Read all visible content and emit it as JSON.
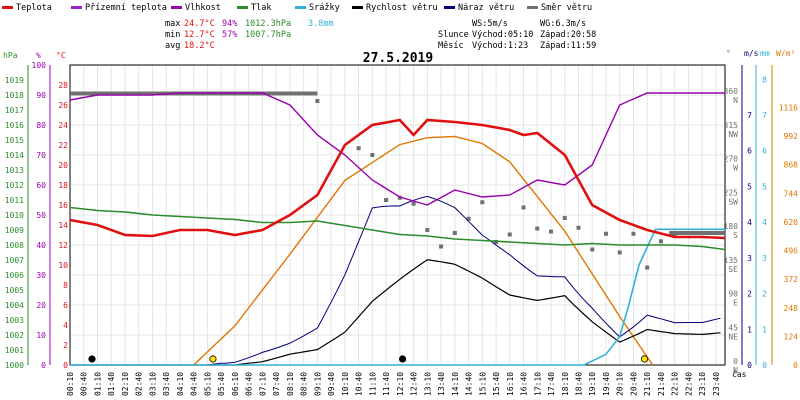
{
  "chart_data": {
    "type": "line",
    "title": "27.5.2019",
    "xlabel": "čas",
    "legend": [
      {
        "key": "temp",
        "label": "Teplota",
        "color": "#e01010"
      },
      {
        "key": "feels",
        "label": "Přízemní teplota",
        "color": "#a020c8"
      },
      {
        "key": "hum",
        "label": "Vlhkost",
        "color": "#9a00b0"
      },
      {
        "key": "press",
        "label": "Tlak",
        "color": "#2a8c2a"
      },
      {
        "key": "rain",
        "label": "Srážky",
        "color": "#30b0d8"
      },
      {
        "key": "ws",
        "label": "Rychlost větru",
        "color": "#000000"
      },
      {
        "key": "wg",
        "label": "Náraz větru",
        "color": "#00007a"
      },
      {
        "key": "wd",
        "label": "Směr větru",
        "color": "#707070"
      }
    ],
    "stats": {
      "max": {
        "label": "max",
        "temp": "24.7°C",
        "hum": "94%",
        "press": "1012.3hPa",
        "rain": "3.8mm"
      },
      "min": {
        "label": "min",
        "temp": "12.7°C",
        "hum": "57%",
        "press": "1007.7hPa"
      },
      "avg": {
        "label": "avg",
        "temp": "18.2°C"
      },
      "ws": "WS:5m/s",
      "wg": "WG:6.3m/s",
      "sun": {
        "label": "Slunce",
        "rise": "Východ:05:10",
        "set": "Západ:20:58"
      },
      "moon": {
        "label": "Měsíc",
        "rise": "Východ:1:23",
        "set": "Západ:11:59"
      }
    },
    "axes": {
      "hpa": {
        "unit": "hPa",
        "color": "#2a8c2a",
        "ticks": [
          "1000",
          "1001",
          "1002",
          "1003",
          "1004",
          "1005",
          "1006",
          "1007",
          "1008",
          "1009",
          "1010",
          "1011",
          "1012",
          "1013",
          "1014",
          "1015",
          "1016",
          "1017",
          "1018",
          "1019"
        ]
      },
      "pct": {
        "unit": "%",
        "color": "#9a00b0",
        "ticks": [
          "0",
          "10",
          "20",
          "30",
          "40",
          "50",
          "60",
          "70",
          "80",
          "90",
          "100"
        ]
      },
      "temp": {
        "unit": "°C",
        "color": "#e01010",
        "ticks": [
          "0",
          "2",
          "4",
          "6",
          "8",
          "10",
          "12",
          "14",
          "16",
          "18",
          "20",
          "22",
          "24",
          "26",
          "28"
        ]
      },
      "dir": {
        "unit": "°",
        "color": "#707070",
        "ticks": [
          {
            "v": "0",
            "d": "N"
          },
          {
            "v": "45",
            "d": "NE"
          },
          {
            "v": "90",
            "d": "E"
          },
          {
            "v": "135",
            "d": "SE"
          },
          {
            "v": "180",
            "d": "S"
          },
          {
            "v": "225",
            "d": "SW"
          },
          {
            "v": "270",
            "d": "W"
          },
          {
            "v": "315",
            "d": "NW"
          },
          {
            "v": "360",
            "d": "N"
          }
        ]
      },
      "ms": {
        "unit": "m/s",
        "color": "#00007a",
        "ticks": [
          "0",
          "1",
          "2",
          "3",
          "4",
          "5",
          "6",
          "7"
        ]
      },
      "mm": {
        "unit": "mm",
        "color": "#30b0d8",
        "ticks": [
          "0",
          "1",
          "2",
          "3",
          "4",
          "5",
          "6",
          "7",
          "8"
        ]
      },
      "wm2": {
        "unit": "W/m²",
        "color": "#e07800",
        "ticks": [
          "0",
          "124",
          "248",
          "372",
          "496",
          "620",
          "744",
          "868",
          "992",
          "1116"
        ]
      }
    },
    "x_ticks": [
      "00:10",
      "00:40",
      "01:10",
      "01:40",
      "02:10",
      "02:40",
      "03:10",
      "03:40",
      "04:10",
      "04:40",
      "05:10",
      "05:40",
      "06:10",
      "06:40",
      "07:10",
      "07:40",
      "08:10",
      "08:40",
      "09:10",
      "09:40",
      "10:10",
      "10:40",
      "11:10",
      "11:40",
      "12:10",
      "12:40",
      "13:10",
      "13:40",
      "14:10",
      "14:40",
      "15:10",
      "15:40",
      "16:10",
      "16:40",
      "17:10",
      "17:40",
      "18:10",
      "18:40",
      "19:10",
      "19:40",
      "20:10",
      "20:40",
      "21:10",
      "21:40",
      "22:10",
      "22:40",
      "23:10",
      "23:40"
    ],
    "series": {
      "temp": {
        "x": [
          0,
          1,
          2,
          3,
          4,
          5,
          6,
          7,
          8,
          9,
          10,
          11,
          12,
          12.5,
          13,
          14,
          15,
          16,
          16.5,
          17,
          18,
          19,
          20,
          21,
          22,
          23,
          23.83
        ],
        "y": [
          14.5,
          14,
          13,
          12.9,
          13.5,
          13.5,
          13,
          13.5,
          15,
          17,
          22,
          24,
          24.5,
          23,
          24.5,
          24.3,
          24,
          23.5,
          23,
          23.2,
          21,
          16,
          14.5,
          13.5,
          12.8,
          12.8,
          12.7
        ]
      },
      "feels": {
        "x": [
          0,
          1,
          2,
          3,
          4,
          5,
          6,
          7,
          8,
          9,
          10,
          11,
          12,
          13,
          14,
          15,
          16,
          17,
          18,
          19,
          20,
          21,
          22,
          23,
          23.83
        ],
        "y": [
          26.5,
          27,
          27,
          27,
          27.2,
          27.2,
          27.2,
          27.2,
          26,
          23,
          21,
          18.5,
          16.8,
          16,
          17.5,
          16.8,
          17,
          18.5,
          18,
          20,
          26,
          27.2,
          27.2,
          27.2,
          27.2
        ]
      },
      "press": {
        "x": [
          0,
          1,
          2,
          3,
          4,
          5,
          6,
          7,
          8,
          9,
          10,
          11,
          12,
          13,
          14,
          15,
          16,
          17,
          18,
          19,
          20,
          21,
          22,
          23,
          23.83
        ],
        "y": [
          1010.5,
          1010.3,
          1010.2,
          1010,
          1009.9,
          1009.8,
          1009.7,
          1009.5,
          1009.5,
          1009.6,
          1009.3,
          1009,
          1008.7,
          1008.6,
          1008.4,
          1008.3,
          1008.2,
          1008.1,
          1008,
          1008.1,
          1008,
          1008,
          1008,
          1007.9,
          1007.7
        ]
      },
      "rain": {
        "x": [
          0,
          18.7,
          19.5,
          20,
          20.3,
          20.7,
          21.3,
          23.83
        ],
        "y": [
          0,
          0,
          0.3,
          0.8,
          1.6,
          2.8,
          3.8,
          3.8
        ]
      },
      "solar": {
        "x": [
          4.5,
          6,
          8,
          10,
          12,
          13,
          14,
          15,
          16,
          18,
          20,
          21.2
        ],
        "y": [
          0,
          170,
          480,
          800,
          955,
          985,
          990,
          960,
          880,
          580,
          210,
          0
        ]
      },
      "ws_hourly": [
        0,
        0,
        0,
        0,
        0,
        0,
        0,
        0.1,
        0.3,
        0.4,
        0.8,
        1.5,
        2,
        2.5,
        2.5,
        2.3,
        2,
        2,
        2.3,
        1.5,
        0.8,
        1.2,
        1,
        0.9
      ],
      "wg_hourly": [
        0,
        0,
        0,
        0,
        0,
        0,
        0.1,
        0.4,
        0.6,
        0.9,
        2,
        3.3,
        3.3,
        3.6,
        3.6,
        3.3,
        3.2,
        3,
        3.4,
        2.4,
        1.2,
        2,
        1.5,
        1.3
      ],
      "wd_points": [
        [
          9,
          352
        ],
        [
          10.5,
          289
        ],
        [
          11,
          280
        ],
        [
          11.5,
          220
        ],
        [
          12,
          223
        ],
        [
          12.5,
          215
        ],
        [
          13,
          180
        ],
        [
          13.5,
          158
        ],
        [
          14,
          176
        ],
        [
          14.5,
          195
        ],
        [
          15,
          217
        ],
        [
          15.5,
          164
        ],
        [
          16,
          174
        ],
        [
          16.5,
          210
        ],
        [
          17,
          182
        ],
        [
          17.5,
          178
        ],
        [
          18,
          196
        ],
        [
          18.5,
          183
        ],
        [
          19,
          154
        ],
        [
          19.5,
          175
        ],
        [
          20,
          150
        ],
        [
          20.5,
          175
        ],
        [
          21,
          130
        ],
        [
          21.5,
          165
        ],
        [
          22,
          172
        ]
      ],
      "wd_segments": [
        [
          0,
          9,
          362
        ],
        [
          21.8,
          23.83,
          176
        ]
      ],
      "moon_markers": [
        {
          "x": 0.8,
          "fill": "#000000"
        },
        {
          "x": 5.2,
          "fill": "#ffe000"
        },
        {
          "x": 12.1,
          "fill": "#000000"
        },
        {
          "x": 20.9,
          "fill": "#ffe000"
        }
      ]
    }
  }
}
